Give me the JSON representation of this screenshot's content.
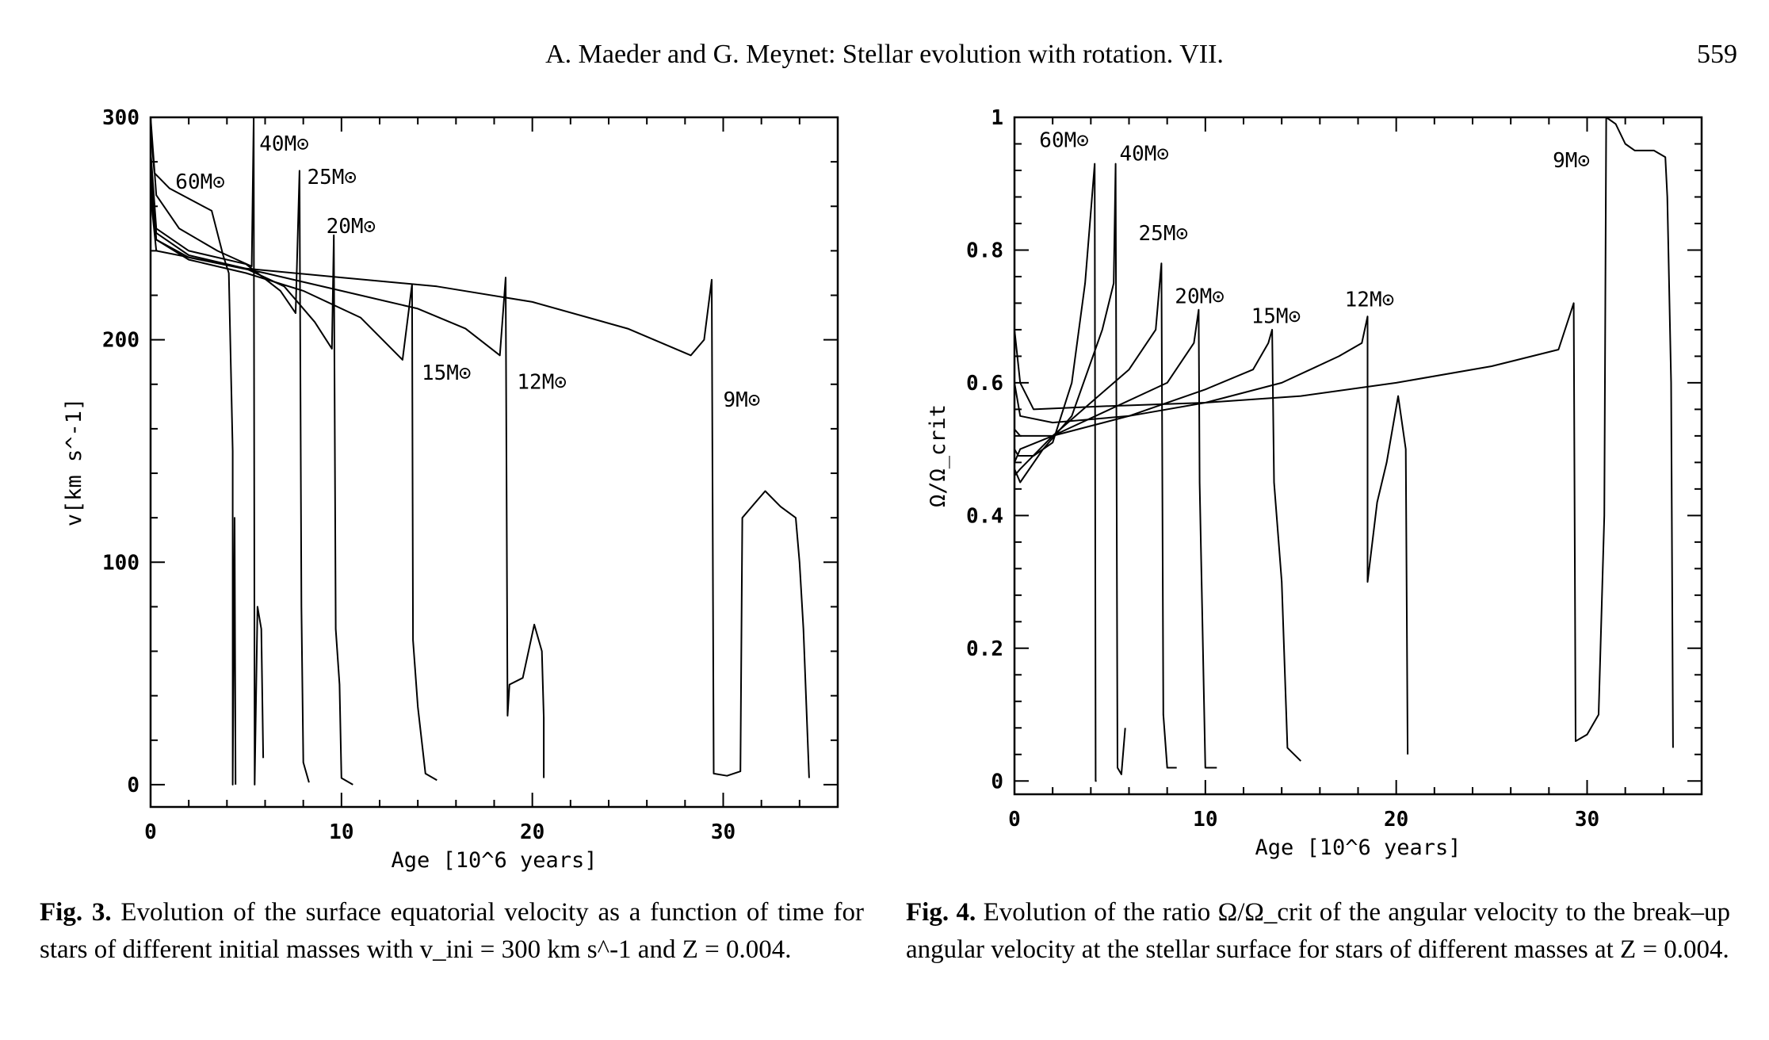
{
  "header": {
    "running_title": "A. Maeder and G. Meynet: Stellar evolution with rotation. VII.",
    "page_number": "559"
  },
  "figures": [
    {
      "caption_label": "Fig. 3.",
      "caption_text": "Evolution of the surface equatorial velocity as a function of time for stars of different initial masses with v_ini = 300 km s^-1 and Z = 0.004."
    },
    {
      "caption_label": "Fig. 4.",
      "caption_text": "Evolution of the ratio Ω/Ω_crit of the angular velocity to the break–up angular velocity at the stellar surface for stars of different masses at Z = 0.004."
    }
  ],
  "chart_data": [
    {
      "type": "line",
      "xlabel": "Age [10^6 years]",
      "ylabel": "v[km s^-1]",
      "xlim": [
        0,
        36
      ],
      "ylim": [
        -10,
        300
      ],
      "x_ticks": [
        0,
        10,
        20,
        30
      ],
      "y_ticks": [
        0,
        100,
        200,
        300
      ],
      "series": [
        {
          "name": "60M⊙",
          "label_at": [
            1.3,
            268
          ],
          "points": [
            [
              0,
              295
            ],
            [
              0.2,
              275
            ],
            [
              1,
              268
            ],
            [
              3.2,
              258
            ],
            [
              3.8,
              238
            ],
            [
              4.1,
              230
            ],
            [
              4.3,
              150
            ],
            [
              4.3,
              0
            ],
            [
              4.4,
              120
            ],
            [
              4.45,
              0
            ]
          ]
        },
        {
          "name": "40M⊙",
          "label_at": [
            5.7,
            285
          ],
          "points": [
            [
              0,
              300
            ],
            [
              0.3,
              265
            ],
            [
              1.5,
              250
            ],
            [
              3.5,
              240
            ],
            [
              5.3,
              233
            ],
            [
              5.4,
              300
            ],
            [
              5.45,
              0
            ],
            [
              5.6,
              80
            ],
            [
              5.8,
              70
            ],
            [
              5.9,
              12
            ]
          ]
        },
        {
          "name": "25M⊙",
          "label_at": [
            8.2,
            270
          ],
          "points": [
            [
              0,
              285
            ],
            [
              0.3,
              250
            ],
            [
              2,
              240
            ],
            [
              5,
              234
            ],
            [
              6.8,
              222
            ],
            [
              7.6,
              212
            ],
            [
              7.8,
              276
            ],
            [
              7.9,
              80
            ],
            [
              8,
              10
            ],
            [
              8.3,
              1
            ]
          ]
        },
        {
          "name": "20M⊙",
          "label_at": [
            9.2,
            248
          ],
          "points": [
            [
              0,
              280
            ],
            [
              0.3,
              248
            ],
            [
              2,
              238
            ],
            [
              5,
              232
            ],
            [
              7,
              224
            ],
            [
              8.6,
              208
            ],
            [
              9.5,
              196
            ],
            [
              9.6,
              247
            ],
            [
              9.7,
              70
            ],
            [
              9.9,
              45
            ],
            [
              10,
              3
            ],
            [
              10.6,
              0
            ]
          ]
        },
        {
          "name": "15M⊙",
          "label_at": [
            14.2,
            182
          ],
          "points": [
            [
              0,
              275
            ],
            [
              0.3,
              245
            ],
            [
              2,
              236
            ],
            [
              5,
              230
            ],
            [
              8,
              222
            ],
            [
              11,
              210
            ],
            [
              13.2,
              191
            ],
            [
              13.7,
              225
            ],
            [
              13.75,
              65
            ],
            [
              14,
              35
            ],
            [
              14.4,
              5
            ],
            [
              15,
              2
            ]
          ]
        },
        {
          "name": "12M⊙",
          "label_at": [
            19.2,
            178
          ],
          "points": [
            [
              0,
              270
            ],
            [
              0.3,
              245
            ],
            [
              2,
              237
            ],
            [
              6,
              230
            ],
            [
              10,
              222
            ],
            [
              14,
              214
            ],
            [
              16.5,
              205
            ],
            [
              18.3,
              193
            ],
            [
              18.6,
              228
            ],
            [
              18.7,
              31
            ],
            [
              18.8,
              45
            ],
            [
              19.5,
              48
            ],
            [
              20.1,
              72
            ],
            [
              20.5,
              60
            ],
            [
              20.6,
              30
            ],
            [
              20.6,
              3
            ]
          ]
        },
        {
          "name": "9M⊙",
          "label_at": [
            30.0,
            170
          ],
          "points": [
            [
              0,
              265
            ],
            [
              0.3,
              240
            ],
            [
              5,
              232
            ],
            [
              10,
              228
            ],
            [
              15,
              224
            ],
            [
              20,
              217
            ],
            [
              25,
              205
            ],
            [
              28.3,
              193
            ],
            [
              29,
              200
            ],
            [
              29.4,
              227
            ],
            [
              29.5,
              5
            ],
            [
              30.2,
              4
            ],
            [
              30.9,
              6
            ],
            [
              31.0,
              120
            ],
            [
              31.5,
              125
            ],
            [
              32.2,
              132
            ],
            [
              33,
              125
            ],
            [
              33.8,
              120
            ],
            [
              34.0,
              100
            ],
            [
              34.2,
              70
            ],
            [
              34.5,
              3
            ]
          ]
        }
      ]
    },
    {
      "type": "line",
      "xlabel": "Age [10^6 years]",
      "ylabel": "Ω/Ω_crit",
      "xlim": [
        0,
        36
      ],
      "ylim": [
        -0.02,
        1
      ],
      "x_ticks": [
        0,
        10,
        20,
        30
      ],
      "y_ticks": [
        0,
        0.2,
        0.4,
        0.6,
        0.8,
        1
      ],
      "y_tick_labels": [
        "0",
        "0.2",
        "0.4",
        "0.6",
        "0.8",
        "1"
      ],
      "series": [
        {
          "name": "60M⊙",
          "label_at": [
            1.3,
            0.955
          ],
          "points": [
            [
              0,
              0.5
            ],
            [
              0.2,
              0.49
            ],
            [
              1,
              0.49
            ],
            [
              2,
              0.51
            ],
            [
              3,
              0.6
            ],
            [
              3.7,
              0.75
            ],
            [
              4.2,
              0.93
            ],
            [
              4.25,
              0
            ],
            [
              4.3,
              0
            ]
          ]
        },
        {
          "name": "40M⊙",
          "label_at": [
            5.5,
            0.935
          ],
          "points": [
            [
              0,
              0.47
            ],
            [
              0.3,
              0.45
            ],
            [
              1.5,
              0.5
            ],
            [
              3,
              0.55
            ],
            [
              4.6,
              0.68
            ],
            [
              5.2,
              0.75
            ],
            [
              5.3,
              0.93
            ],
            [
              5.4,
              0.02
            ],
            [
              5.6,
              0.01
            ],
            [
              5.8,
              0.08
            ]
          ]
        },
        {
          "name": "25M⊙",
          "label_at": [
            6.5,
            0.815
          ],
          "points": [
            [
              0,
              0.46
            ],
            [
              0.3,
              0.47
            ],
            [
              2,
              0.52
            ],
            [
              4,
              0.57
            ],
            [
              6,
              0.62
            ],
            [
              7.4,
              0.68
            ],
            [
              7.7,
              0.78
            ],
            [
              7.8,
              0.1
            ],
            [
              8,
              0.02
            ],
            [
              8.5,
              0.02
            ]
          ]
        },
        {
          "name": "20M⊙",
          "label_at": [
            8.4,
            0.72
          ],
          "points": [
            [
              0,
              0.48
            ],
            [
              0.3,
              0.5
            ],
            [
              2,
              0.52
            ],
            [
              5,
              0.56
            ],
            [
              8,
              0.6
            ],
            [
              9.4,
              0.66
            ],
            [
              9.65,
              0.71
            ],
            [
              9.7,
              0.45
            ],
            [
              10,
              0.02
            ],
            [
              10.6,
              0.02
            ]
          ]
        },
        {
          "name": "15M⊙",
          "label_at": [
            12.4,
            0.69
          ],
          "points": [
            [
              0,
              0.53
            ],
            [
              0.3,
              0.52
            ],
            [
              2,
              0.52
            ],
            [
              6,
              0.55
            ],
            [
              10,
              0.59
            ],
            [
              12.5,
              0.62
            ],
            [
              13.3,
              0.66
            ],
            [
              13.5,
              0.68
            ],
            [
              13.6,
              0.45
            ],
            [
              14,
              0.3
            ],
            [
              14.3,
              0.05
            ],
            [
              15,
              0.03
            ]
          ]
        },
        {
          "name": "12M⊙",
          "label_at": [
            17.3,
            0.715
          ],
          "points": [
            [
              0,
              0.6
            ],
            [
              0.3,
              0.55
            ],
            [
              2,
              0.54
            ],
            [
              6,
              0.55
            ],
            [
              10,
              0.57
            ],
            [
              14,
              0.6
            ],
            [
              17,
              0.64
            ],
            [
              18.2,
              0.66
            ],
            [
              18.5,
              0.7
            ],
            [
              18.5,
              0.3
            ],
            [
              19,
              0.42
            ],
            [
              19.5,
              0.48
            ],
            [
              20.1,
              0.58
            ],
            [
              20.5,
              0.5
            ],
            [
              20.6,
              0.04
            ]
          ]
        },
        {
          "name": "9M⊙",
          "label_at": [
            28.2,
            0.925
          ],
          "points": [
            [
              0,
              0.68
            ],
            [
              0.3,
              0.6
            ],
            [
              1,
              0.56
            ],
            [
              5,
              0.565
            ],
            [
              10,
              0.57
            ],
            [
              15,
              0.58
            ],
            [
              20,
              0.6
            ],
            [
              25,
              0.625
            ],
            [
              28.5,
              0.65
            ],
            [
              29.3,
              0.72
            ],
            [
              29.4,
              0.06
            ],
            [
              30,
              0.07
            ],
            [
              30.6,
              0.1
            ],
            [
              30.9,
              0.4
            ],
            [
              31.0,
              1
            ],
            [
              31.5,
              0.99
            ],
            [
              32,
              0.96
            ],
            [
              32.5,
              0.95
            ],
            [
              33.5,
              0.95
            ],
            [
              34.1,
              0.94
            ],
            [
              34.2,
              0.88
            ],
            [
              34.4,
              0.6
            ],
            [
              34.5,
              0.05
            ]
          ]
        }
      ]
    }
  ]
}
